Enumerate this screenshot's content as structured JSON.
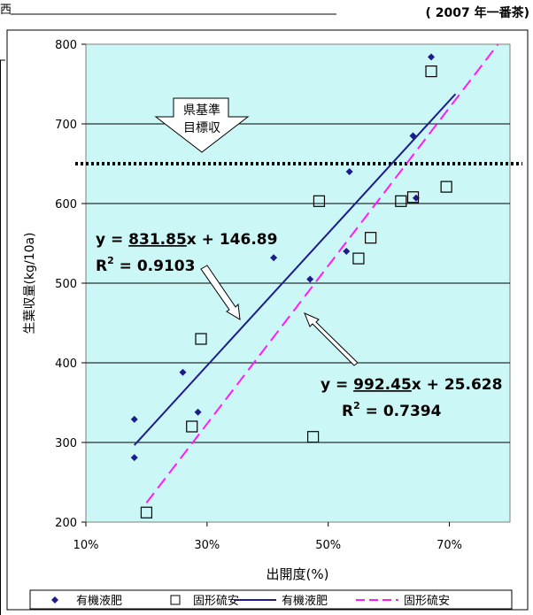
{
  "page": {
    "corner_note": "西",
    "year_note": "( 2007 年一番茶)"
  },
  "chart_data": {
    "type": "scatter",
    "title": "",
    "xlabel": "出開度(%)",
    "ylabel": "生葉収量(kg/10a)",
    "xlim": [
      10,
      80
    ],
    "ylim": [
      200,
      800
    ],
    "x_ticks": [
      10,
      30,
      50,
      70
    ],
    "x_tick_labels": [
      "10%",
      "30%",
      "50%",
      "70%"
    ],
    "y_ticks": [
      200,
      300,
      400,
      500,
      600,
      700,
      800
    ],
    "y_tick_labels": [
      "200",
      "300",
      "400",
      "500",
      "600",
      "700",
      "800"
    ],
    "grid": true,
    "legend_position": "bottom",
    "series": [
      {
        "name": "有機液肥",
        "marker": "diamond",
        "color": "#1c1c8c",
        "x": [
          18,
          18,
          26,
          28.5,
          41,
          47,
          53,
          53.5,
          64,
          64.5,
          67
        ],
        "y": [
          329,
          281,
          388,
          338,
          532,
          505,
          540,
          640,
          685,
          607,
          784
        ]
      },
      {
        "name": "固形硫安",
        "marker": "square",
        "color": "#000000",
        "x": [
          20,
          27.5,
          29,
          47.5,
          48.5,
          55,
          57,
          62,
          64,
          67,
          69.5
        ],
        "y": [
          212,
          320,
          430,
          307,
          603,
          531,
          557,
          603,
          608,
          766,
          621
        ]
      }
    ],
    "trendlines": [
      {
        "name": "有機液肥",
        "style": "solid",
        "color": "#1c1c8c",
        "slope": 831.85,
        "intercept": 146.89,
        "x_range": [
          18,
          71
        ],
        "equation": "831.85x + 146.89",
        "r2": "0.9103"
      },
      {
        "name": "固形硫安",
        "style": "dashed",
        "color": "#ff1aff",
        "slope": 992.45,
        "intercept": 25.628,
        "x_range": [
          20,
          78
        ],
        "equation": "992.45x + 25.628",
        "r2": "0.7394"
      }
    ],
    "reference_line": {
      "y": 650,
      "style": "dotted",
      "label_line1": "県基準",
      "label_line2": "目標収"
    },
    "annotations": {
      "eq1_prefix": "y = ",
      "eq1_num": "831.85",
      "eq1_rest": "x + 146.89",
      "r2_1_prefix": "R",
      "r2_1_value": " = 0.9103",
      "eq2_prefix": "y = ",
      "eq2_num": "992.45",
      "eq2_rest": "x + 25.628",
      "r2_2_prefix": "R",
      "r2_2_value": " = 0.7394",
      "sup": "2"
    },
    "legend": [
      {
        "label": "有機液肥",
        "kind": "diamond"
      },
      {
        "label": "固形硫安",
        "kind": "square"
      },
      {
        "label": "有機液肥",
        "kind": "solid-line"
      },
      {
        "label": "固形硫安",
        "kind": "dashed-line"
      }
    ]
  }
}
